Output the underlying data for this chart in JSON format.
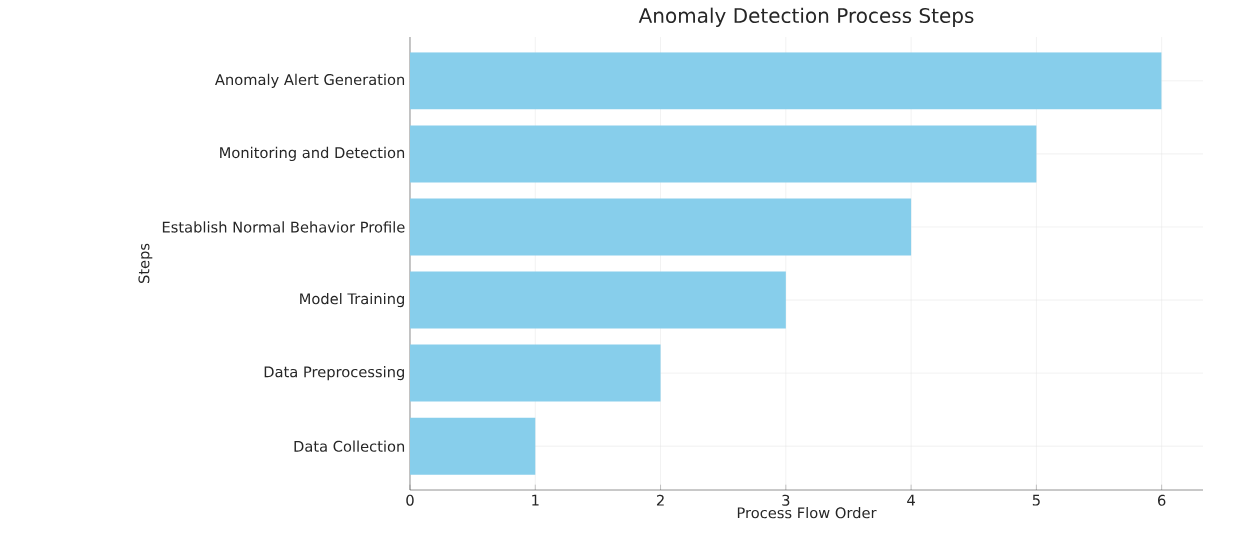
{
  "chart_data": {
    "type": "bar",
    "orientation": "horizontal",
    "title": "Anomaly Detection Process Steps",
    "xlabel": "Process Flow Order",
    "ylabel": "Steps",
    "categories": [
      "Anomaly Alert Generation",
      "Monitoring and Detection",
      "Establish Normal Behavior Profile",
      "Model Training",
      "Data Preprocessing",
      "Data Collection"
    ],
    "values": [
      6,
      5,
      4,
      3,
      2,
      1
    ],
    "color": "#87ceeb",
    "xlim": [
      0,
      6.33
    ],
    "xticks": [
      0,
      1,
      2,
      3,
      4,
      5,
      6
    ],
    "grid": true
  }
}
